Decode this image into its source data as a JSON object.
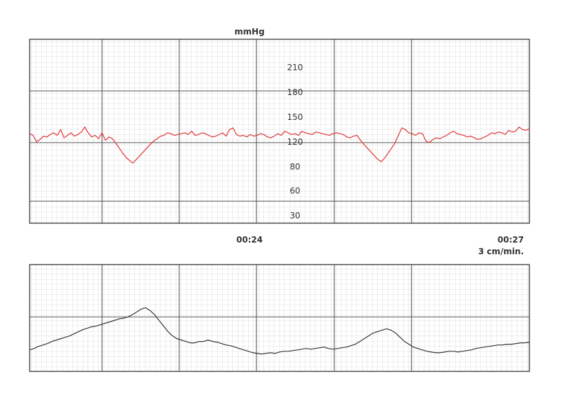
{
  "chart_data": [
    {
      "type": "line",
      "title": "",
      "unit_label": "mmHg",
      "ylabel": "",
      "xlabel": "",
      "y_tick_labels": [
        "210",
        "180",
        "150",
        "120",
        "80",
        "60",
        "30"
      ],
      "x_tick_labels": [
        "00:24",
        "00:27"
      ],
      "speed_label": "3 cm/min.",
      "grid": true,
      "color": "#e04040",
      "series": [
        {
          "values": [
            130,
            128,
            120,
            123,
            127,
            126,
            129,
            131,
            128,
            135,
            125,
            128,
            131,
            127,
            129,
            132,
            138,
            131,
            126,
            128,
            124,
            131,
            122,
            126,
            124,
            118,
            110,
            102,
            95,
            90,
            86,
            92,
            98,
            104,
            110,
            116,
            121,
            124,
            127,
            128,
            131,
            130,
            128,
            129,
            130,
            131,
            129,
            133,
            128,
            129,
            131,
            130,
            128,
            126,
            127,
            129,
            131,
            127,
            135,
            137,
            129,
            127,
            128,
            126,
            129,
            127,
            128,
            130,
            129,
            126,
            125,
            127,
            130,
            128,
            133,
            131,
            129,
            130,
            128,
            133,
            131,
            130,
            129,
            132,
            131,
            130,
            129,
            128,
            130,
            131,
            130,
            129,
            126,
            125,
            127,
            128,
            122,
            116,
            110,
            104,
            98,
            92,
            88,
            94,
            102,
            110,
            118,
            128,
            137,
            135,
            131,
            130,
            128,
            131,
            130,
            121,
            119,
            123,
            125,
            124,
            126,
            128,
            131,
            133,
            130,
            129,
            128,
            126,
            127,
            125,
            123,
            124,
            126,
            128,
            131,
            130,
            132,
            131,
            129,
            134,
            132,
            133,
            138,
            135,
            134,
            136
          ]
        }
      ]
    },
    {
      "type": "line",
      "title": "",
      "color": "#333333",
      "grid": true,
      "series": [
        {
          "values": [
            10,
            12,
            15,
            17,
            19,
            22,
            24,
            26,
            28,
            30,
            33,
            36,
            39,
            41,
            43,
            44,
            46,
            48,
            50,
            52,
            54,
            55,
            57,
            60,
            64,
            68,
            70,
            66,
            60,
            52,
            44,
            36,
            30,
            26,
            24,
            22,
            20,
            20,
            22,
            22,
            24,
            22,
            21,
            19,
            17,
            16,
            14,
            12,
            10,
            8,
            6,
            5,
            4,
            5,
            6,
            5,
            7,
            8,
            8,
            9,
            10,
            11,
            12,
            11,
            12,
            13,
            14,
            12,
            11,
            12,
            13,
            14,
            16,
            18,
            22,
            26,
            30,
            34,
            36,
            38,
            40,
            38,
            34,
            28,
            22,
            18,
            14,
            12,
            10,
            8,
            7,
            6,
            6,
            7,
            8,
            8,
            7,
            8,
            9,
            10,
            12,
            13,
            14,
            15,
            16,
            17,
            17,
            18,
            18,
            19,
            20,
            20,
            21
          ]
        }
      ]
    }
  ]
}
